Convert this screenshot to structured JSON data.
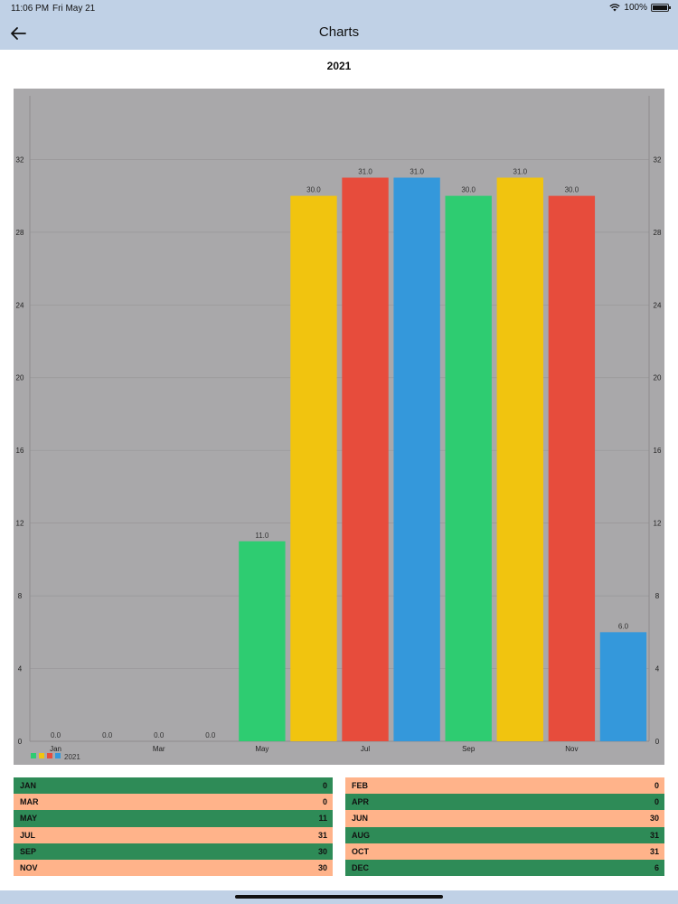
{
  "status": {
    "time": "11:06 PM",
    "date": "Fri May 21",
    "battery": "100%"
  },
  "nav": {
    "title": "Charts",
    "back_icon": "arrow-left-icon"
  },
  "page": {
    "title": "2021"
  },
  "chart_data": {
    "type": "bar",
    "background": "#a9a8aa",
    "categories": [
      "Jan",
      "Feb",
      "Mar",
      "Apr",
      "May",
      "Jun",
      "Jul",
      "Aug",
      "Sep",
      "Oct",
      "Nov",
      "Dec"
    ],
    "x_tick_labels": [
      "Jan",
      "Mar",
      "May",
      "Jul",
      "Sep",
      "Nov"
    ],
    "values": [
      0,
      0,
      0,
      0,
      11,
      30,
      31,
      31,
      30,
      31,
      30,
      6
    ],
    "value_labels": [
      "0.0",
      "0.0",
      "0.0",
      "0.0",
      "11.0",
      "30.0",
      "31.0",
      "31.0",
      "30.0",
      "31.0",
      "30.0",
      "6.0"
    ],
    "colors": [
      "#2ecc71",
      "#f1c40f",
      "#e74c3c",
      "#3498db"
    ],
    "y_ticks": [
      "0",
      "4",
      "8",
      "12",
      "16",
      "20",
      "24",
      "28",
      "32"
    ],
    "ylim": [
      0,
      35.5
    ],
    "grid": true,
    "axes": "left-and-right",
    "legend": {
      "label": "2021",
      "position": "bottom-left"
    }
  },
  "table_left": [
    {
      "month": "JAN",
      "value": "0"
    },
    {
      "month": "MAR",
      "value": "0"
    },
    {
      "month": "MAY",
      "value": "11"
    },
    {
      "month": "JUL",
      "value": "31"
    },
    {
      "month": "SEP",
      "value": "30"
    },
    {
      "month": "NOV",
      "value": "30"
    }
  ],
  "table_right": [
    {
      "month": "FEB",
      "value": "0"
    },
    {
      "month": "APR",
      "value": "0"
    },
    {
      "month": "JUN",
      "value": "30"
    },
    {
      "month": "AUG",
      "value": "31"
    },
    {
      "month": "OCT",
      "value": "31"
    },
    {
      "month": "DEC",
      "value": "6"
    }
  ],
  "row_colors": {
    "green": "#2e8b57",
    "peach": "#ffb38a"
  }
}
